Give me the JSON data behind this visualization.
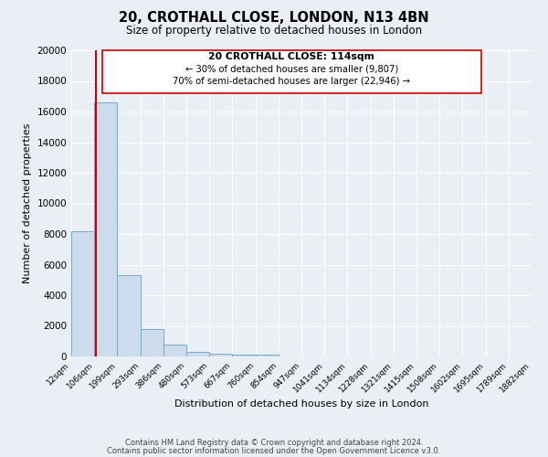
{
  "title": "20, CROTHALL CLOSE, LONDON, N13 4BN",
  "subtitle": "Size of property relative to detached houses in London",
  "xlabel": "Distribution of detached houses by size in London",
  "ylabel": "Number of detached properties",
  "bar_color": "#ccdcec",
  "bar_edge_color": "#7aaac8",
  "background_color": "#eaeff5",
  "grid_color": "#ffffff",
  "ylim": [
    0,
    20000
  ],
  "yticks": [
    0,
    2000,
    4000,
    6000,
    8000,
    10000,
    12000,
    14000,
    16000,
    18000,
    20000
  ],
  "bin_labels": [
    "12sqm",
    "106sqm",
    "199sqm",
    "293sqm",
    "386sqm",
    "480sqm",
    "573sqm",
    "667sqm",
    "760sqm",
    "854sqm",
    "947sqm",
    "1041sqm",
    "1134sqm",
    "1228sqm",
    "1321sqm",
    "1415sqm",
    "1508sqm",
    "1602sqm",
    "1695sqm",
    "1789sqm",
    "1882sqm"
  ],
  "bar_heights": [
    8200,
    16600,
    5300,
    1800,
    750,
    280,
    200,
    120,
    100,
    0,
    0,
    0,
    0,
    0,
    0,
    0,
    0,
    0,
    0,
    0
  ],
  "property_line_color": "#cc0000",
  "annotation_title": "20 CROTHALL CLOSE: 114sqm",
  "annotation_line1": "← 30% of detached houses are smaller (9,807)",
  "annotation_line2": "70% of semi-detached houses are larger (22,946) →",
  "footer_line1": "Contains HM Land Registry data © Crown copyright and database right 2024.",
  "footer_line2": "Contains public sector information licensed under the Open Government Licence v3.0."
}
